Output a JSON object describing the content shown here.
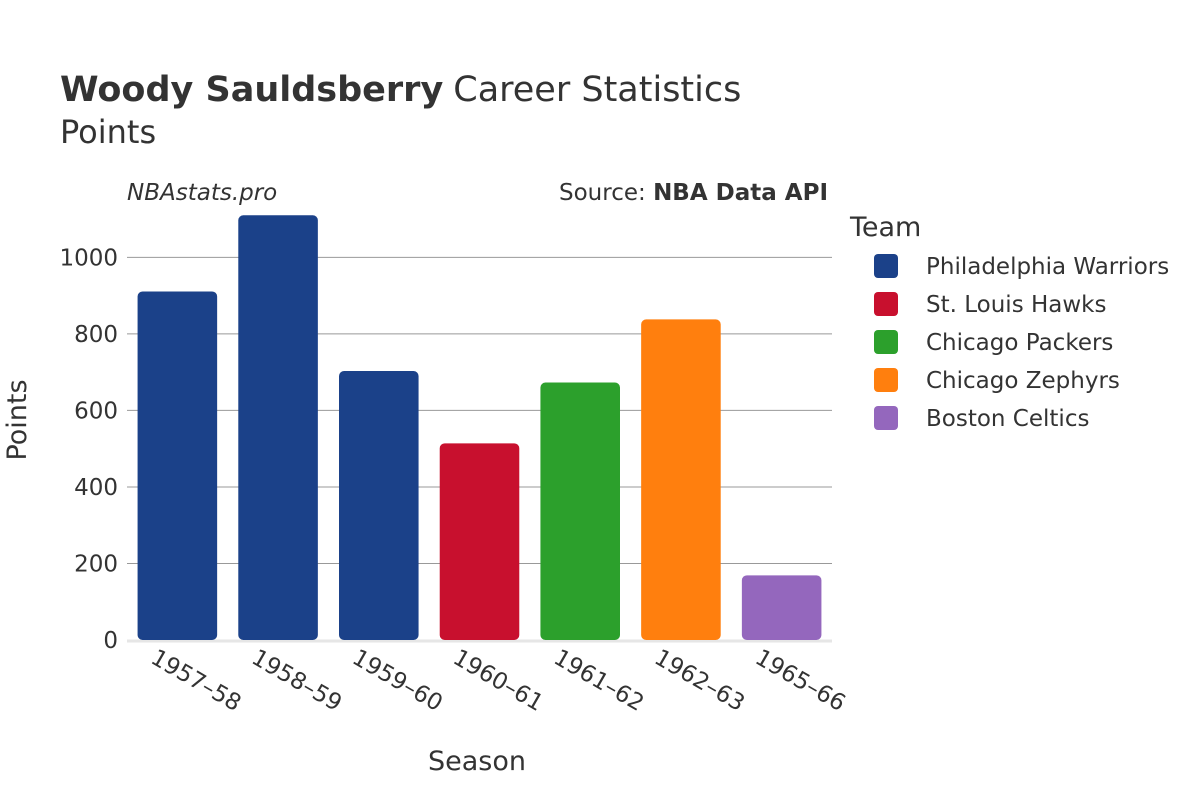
{
  "header": {
    "player_name": "Woody Sauldsberry",
    "title_suffix": "Career Statistics",
    "subtitle": "Points"
  },
  "watermark": "NBAstats.pro",
  "source": {
    "prefix": "Source: ",
    "name": "NBA Data API"
  },
  "legend": {
    "title": "Team",
    "placement": "right",
    "items": [
      {
        "label": "Philadelphia Warriors",
        "color": "#1b4189"
      },
      {
        "label": "St. Louis Hawks",
        "color": "#c8102e"
      },
      {
        "label": "Chicago Packers",
        "color": "#2ca02c"
      },
      {
        "label": "Chicago Zephyrs",
        "color": "#ff7f0e"
      },
      {
        "label": "Boston Celtics",
        "color": "#9467bd"
      }
    ]
  },
  "chart_data": {
    "type": "bar",
    "title": "Woody Sauldsberry Career Statistics",
    "subtitle": "Points",
    "xlabel": "Season",
    "ylabel": "Points",
    "ylim": [
      0,
      1150
    ],
    "yticks": [
      0,
      200,
      400,
      600,
      800,
      1000
    ],
    "grid": true,
    "categories": [
      "1957–58",
      "1958–59",
      "1959–60",
      "1960–61",
      "1961–62",
      "1962–63",
      "1965–66"
    ],
    "values": [
      911,
      1110,
      703,
      514,
      673,
      838,
      169
    ],
    "teams": [
      "Philadelphia Warriors",
      "Philadelphia Warriors",
      "Philadelphia Warriors",
      "St. Louis Hawks",
      "Chicago Packers",
      "Chicago Zephyrs",
      "Boston Celtics"
    ]
  }
}
